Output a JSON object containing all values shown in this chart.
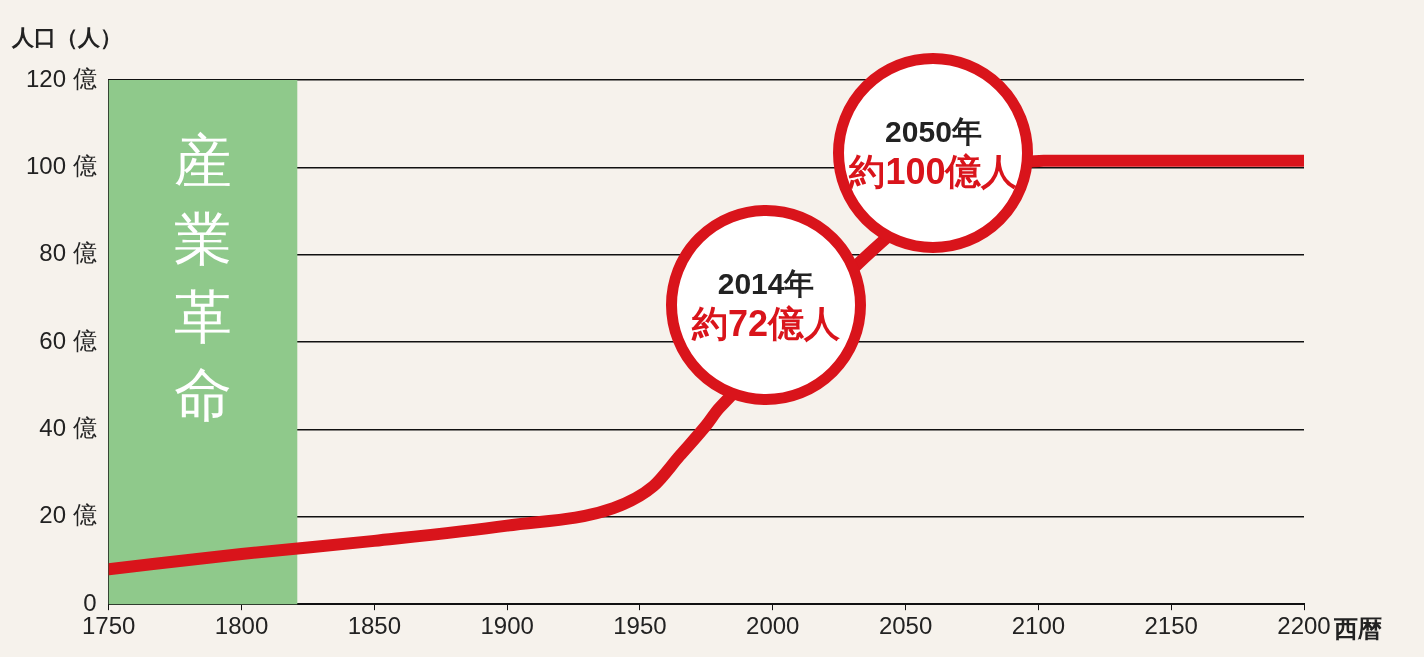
{
  "chart_data": {
    "type": "line",
    "ylabel": "人口（人）",
    "xlabel": "西暦",
    "x": [
      1750,
      1800,
      1850,
      1900,
      1940,
      1955,
      1965,
      1975,
      1980,
      2102,
      2150,
      2200
    ],
    "series": [
      {
        "color": "#d9141b",
        "values": [
          8,
          11.5,
          14.5,
          18,
          22,
          27,
          34,
          41,
          45,
          101.5,
          101.5,
          101.5
        ]
      }
    ],
    "xlim": [
      1750,
      2200
    ],
    "xticks": [
      1750,
      1800,
      1850,
      1900,
      1950,
      2000,
      2050,
      2100,
      2150,
      2200
    ],
    "ylim": [
      0,
      120
    ],
    "yticks": [
      0,
      {
        "value": 20,
        "label": "20 億"
      },
      {
        "value": 40,
        "label": "40 億"
      },
      {
        "value": 60,
        "label": "60 億"
      },
      {
        "value": 80,
        "label": "80 億"
      },
      {
        "value": 100,
        "label": "100 億"
      },
      {
        "value": 120,
        "label": "120 億"
      }
    ],
    "bands": [
      {
        "axis": "x",
        "from": 1750,
        "to": 1821,
        "label": "産業革命",
        "color": "#8fc98b"
      }
    ],
    "annotations": [
      "2014年",
      "約72億人",
      "2050年",
      "約100億人"
    ],
    "grid": "y",
    "legend": false,
    "marker": "none",
    "line_style": "solid"
  }
}
